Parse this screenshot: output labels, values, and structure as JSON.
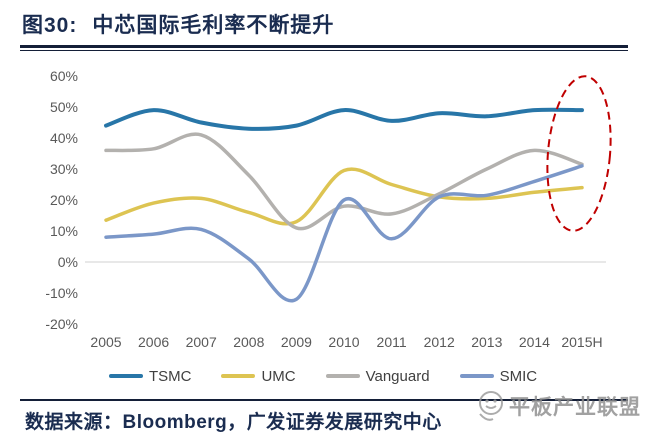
{
  "header": {
    "figure_label": "图30:",
    "title": "中芯国际毛利率不断提升"
  },
  "chart_data": {
    "type": "line",
    "title": "中芯国际毛利率不断提升",
    "categories": [
      "2005",
      "2006",
      "2007",
      "2008",
      "2009",
      "2010",
      "2011",
      "2012",
      "2013",
      "2014",
      "2015H"
    ],
    "series": [
      {
        "name": "TSMC",
        "color": "#2876a8",
        "width": 4,
        "values": [
          44,
          49,
          45,
          43,
          44,
          49,
          45.5,
          48,
          47,
          49,
          49
        ]
      },
      {
        "name": "UMC",
        "color": "#ddc452",
        "width": 3.5,
        "values": [
          13.5,
          19,
          20.5,
          16,
          13,
          29.5,
          25,
          21,
          20.5,
          22.5,
          24
        ]
      },
      {
        "name": "Vanguard",
        "color": "#b3b1ae",
        "width": 3.5,
        "values": [
          36,
          36.5,
          41,
          28,
          11,
          18,
          15.5,
          22,
          30,
          36,
          31.5
        ]
      },
      {
        "name": "SMIC",
        "color": "#7b97c8",
        "width": 3.5,
        "values": [
          8,
          9,
          10.5,
          1,
          -12,
          20,
          7.5,
          21,
          21.5,
          26,
          31
        ]
      }
    ],
    "ylim": [
      -20,
      60
    ],
    "yticks": [
      "60%",
      "50%",
      "40%",
      "30%",
      "20%",
      "10%",
      "0%",
      "-10%",
      "-20%"
    ],
    "grid": {
      "zero_line_only": true,
      "color": "#d9d9d9"
    },
    "legend_position": "bottom",
    "annotation": {
      "shape": "dashed-ellipse",
      "category": "2015H",
      "value_top": 60,
      "value_bottom": 10,
      "color": "#c00000"
    }
  },
  "footer": {
    "source": "数据来源：Bloomberg，广发证券发展研究中心"
  },
  "watermark": {
    "text": "平板产业联盟"
  }
}
